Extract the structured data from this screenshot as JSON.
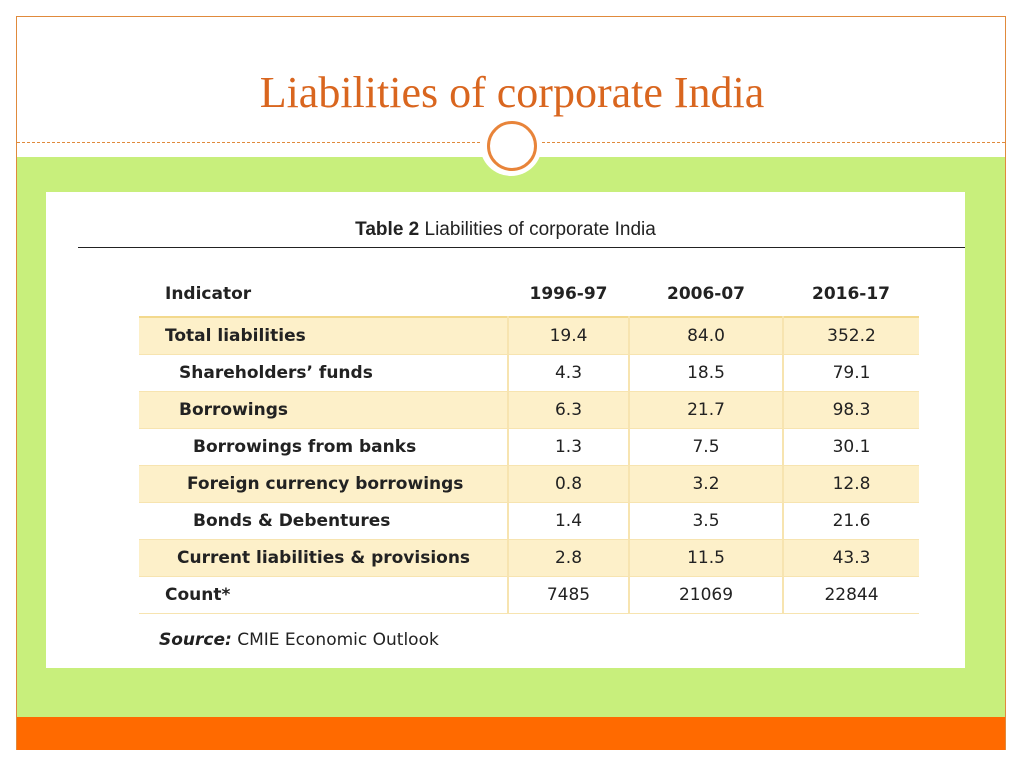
{
  "slide": {
    "title": "Liabilities of corporate India"
  },
  "table": {
    "caption_bold": "Table 2",
    "caption_text": "Liabilities of corporate India",
    "headers": [
      "Indicator",
      "1996-97",
      "2006-07",
      "2016-17"
    ],
    "rows": [
      {
        "label": "Total liabilities",
        "values": [
          "19.4",
          "84.0",
          "352.2"
        ]
      },
      {
        "label": "Shareholders’ funds",
        "values": [
          "4.3",
          "18.5",
          "79.1"
        ]
      },
      {
        "label": "Borrowings",
        "values": [
          "6.3",
          "21.7",
          "98.3"
        ]
      },
      {
        "label": "Borrowings from banks",
        "values": [
          "1.3",
          "7.5",
          "30.1"
        ]
      },
      {
        "label": "Foreign currency borrowings",
        "values": [
          "0.8",
          "3.2",
          "12.8"
        ]
      },
      {
        "label": "Bonds & Debentures",
        "values": [
          "1.4",
          "3.5",
          "21.6"
        ]
      },
      {
        "label": "Current liabilities & provisions",
        "values": [
          "2.8",
          "11.5",
          "43.3"
        ]
      },
      {
        "label": "Count*",
        "values": [
          "7485",
          "21069",
          "22844"
        ]
      }
    ],
    "source_label": "Source:",
    "source_text": "CMIE Economic Outlook"
  },
  "colors": {
    "title": "#d9661f",
    "green_band": "#c8ef7c",
    "orange_band": "#ff6a00",
    "row_shade": "#fdf0c9"
  }
}
